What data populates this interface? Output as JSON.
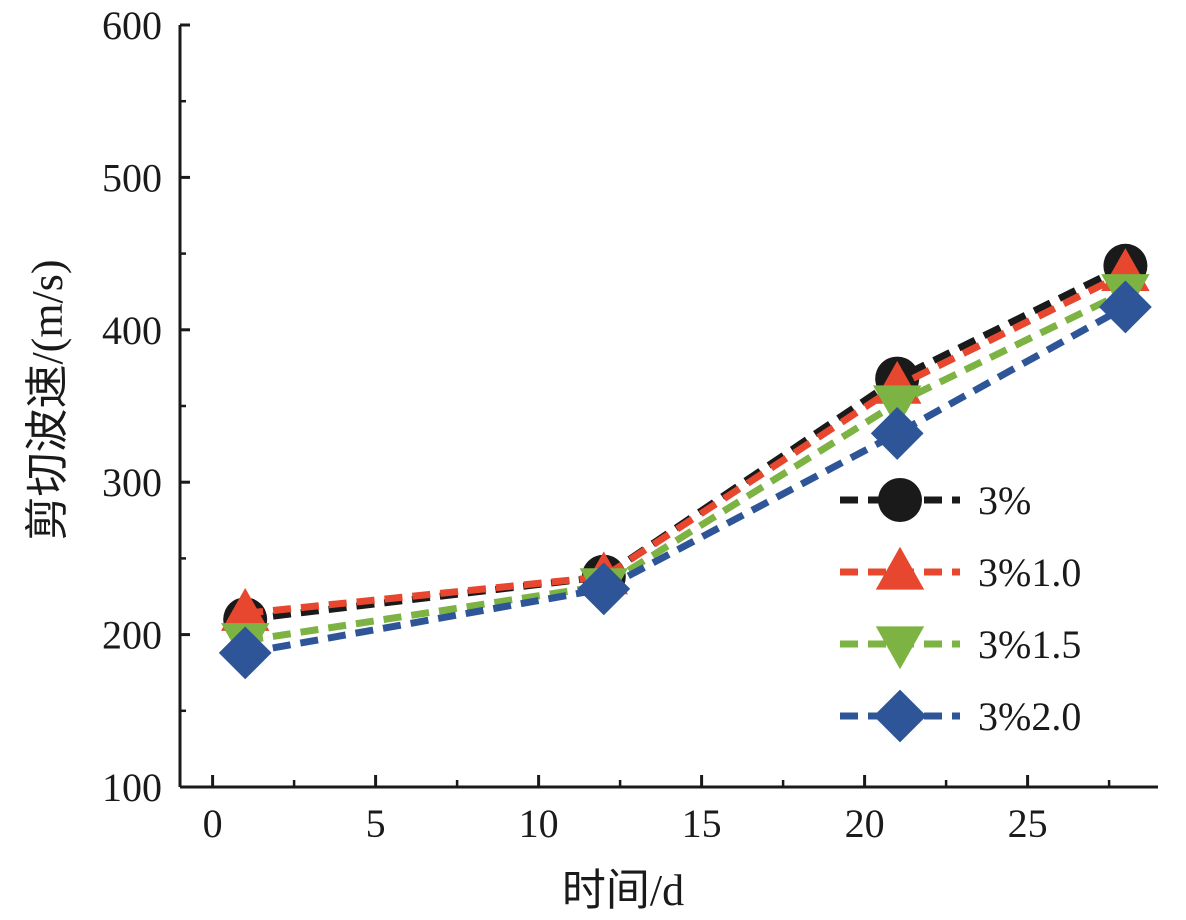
{
  "chart_data": {
    "type": "line",
    "xlabel": "时间/d",
    "ylabel": "剪切波速/(m/s)",
    "xlim": [
      -1,
      29
    ],
    "ylim": [
      100,
      600
    ],
    "xticks": [
      0,
      5,
      10,
      15,
      20,
      25
    ],
    "yticks": [
      100,
      200,
      300,
      400,
      500,
      600
    ],
    "grid": false,
    "legend_position": "right-middle",
    "x": [
      1,
      12,
      21,
      28
    ],
    "series": [
      {
        "name": "3%",
        "values": [
          210,
          238,
          368,
          442
        ],
        "color": "#1a1a1a",
        "marker": "circle"
      },
      {
        "name": "3%1.0",
        "values": [
          214,
          238,
          363,
          437
        ],
        "color": "#e8472f",
        "marker": "triangle-up"
      },
      {
        "name": "3%1.5",
        "values": [
          196,
          232,
          352,
          425
        ],
        "color": "#7cb342",
        "marker": "triangle-down"
      },
      {
        "name": "3%2.0",
        "values": [
          188,
          230,
          332,
          415
        ],
        "color": "#2d5597",
        "marker": "diamond"
      }
    ]
  }
}
